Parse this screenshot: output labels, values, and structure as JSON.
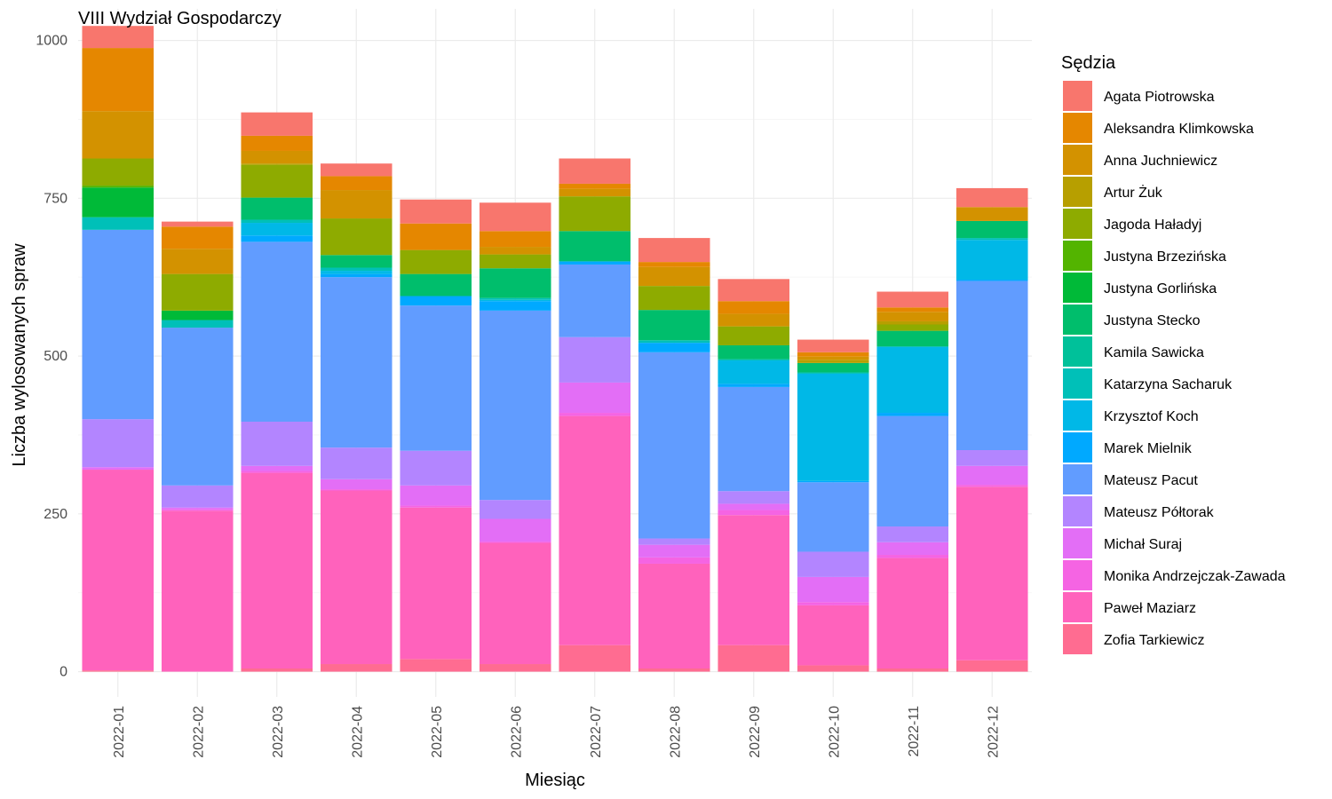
{
  "chart_data": {
    "type": "bar",
    "stacked": true,
    "title": "VIII Wydział Gospodarczy",
    "xlabel": "Miesiąc",
    "ylabel": "Liczba wylosowanych spraw",
    "ylim": [
      -40,
      1050
    ],
    "yticks": [
      0,
      250,
      500,
      750,
      1000
    ],
    "grid": true,
    "legend_position": "right",
    "legend_title": "Sędzia",
    "categories": [
      "2022-01",
      "2022-02",
      "2022-03",
      "2022-04",
      "2022-05",
      "2022-06",
      "2022-07",
      "2022-08",
      "2022-09",
      "2022-10",
      "2022-11",
      "2022-12"
    ],
    "series": [
      {
        "name": "Zofia Tarkiewicz",
        "color": "#FF6C91",
        "values": [
          2,
          0,
          5,
          12,
          20,
          12,
          42,
          5,
          42,
          10,
          5,
          18
        ]
      },
      {
        "name": "Paweł Maziarz",
        "color": "#FF62BC",
        "values": [
          318,
          255,
          310,
          275,
          240,
          192,
          363,
          166,
          206,
          95,
          175,
          275
        ]
      },
      {
        "name": "Monika Andrzejczak-Zawada",
        "color": "#F564E3",
        "values": [
          0,
          2,
          3,
          2,
          3,
          2,
          5,
          10,
          8,
          5,
          5,
          3
        ]
      },
      {
        "name": "Michał Suraj",
        "color": "#E36EF6",
        "values": [
          4,
          3,
          8,
          16,
          32,
          36,
          48,
          20,
          10,
          40,
          20,
          30
        ]
      },
      {
        "name": "Mateusz Półtorak",
        "color": "#B385FF",
        "values": [
          76,
          35,
          70,
          50,
          55,
          30,
          72,
          10,
          20,
          40,
          25,
          25
        ]
      },
      {
        "name": "Mateusz Pacut",
        "color": "#619CFF",
        "values": [
          300,
          250,
          285,
          270,
          230,
          300,
          115,
          295,
          165,
          110,
          175,
          268
        ]
      },
      {
        "name": "Marek Mielnik",
        "color": "#00A9FF",
        "values": [
          0,
          0,
          10,
          5,
          15,
          15,
          5,
          15,
          5,
          2,
          5,
          2
        ]
      },
      {
        "name": "Krzysztof Koch",
        "color": "#00B8E7",
        "values": [
          0,
          0,
          20,
          5,
          0,
          2,
          0,
          0,
          37,
          170,
          105,
          63
        ]
      },
      {
        "name": "Katarzyna Sacharuk",
        "color": "#00C0B8",
        "values": [
          20,
          12,
          5,
          5,
          0,
          3,
          0,
          4,
          2,
          2,
          0,
          3
        ]
      },
      {
        "name": "Kamila Sawicka",
        "color": "#00C19A",
        "values": [
          0,
          0,
          0,
          0,
          0,
          0,
          0,
          0,
          0,
          0,
          0,
          0
        ]
      },
      {
        "name": "Justyna Stecko",
        "color": "#00BE6C",
        "values": [
          0,
          0,
          35,
          20,
          35,
          47,
          48,
          48,
          22,
          15,
          25,
          27
        ]
      },
      {
        "name": "Justyna Gorlińska",
        "color": "#00BA38",
        "values": [
          47,
          15,
          0,
          0,
          0,
          0,
          0,
          0,
          0,
          0,
          0,
          0
        ]
      },
      {
        "name": "Justyna Brzezińska",
        "color": "#53B400",
        "values": [
          3,
          0,
          0,
          0,
          0,
          0,
          0,
          0,
          0,
          0,
          0,
          0
        ]
      },
      {
        "name": "Jagoda Haładyj",
        "color": "#8EAB00",
        "values": [
          43,
          58,
          52,
          58,
          38,
          22,
          55,
          38,
          30,
          0,
          10,
          0
        ]
      },
      {
        "name": "Artur Żuk",
        "color": "#B79F00",
        "values": [
          0,
          0,
          2,
          0,
          0,
          0,
          0,
          0,
          0,
          5,
          5,
          0
        ]
      },
      {
        "name": "Anna Juchniewicz",
        "color": "#D39200",
        "values": [
          75,
          40,
          20,
          45,
          0,
          12,
          12,
          30,
          20,
          5,
          15,
          22
        ]
      },
      {
        "name": "Aleksandra Klimkowska",
        "color": "#E58700",
        "values": [
          100,
          35,
          24,
          22,
          42,
          25,
          8,
          8,
          20,
          7,
          7,
          0
        ]
      },
      {
        "name": "Agata Piotrowska",
        "color": "#F8766D",
        "values": [
          35,
          8,
          37,
          20,
          38,
          45,
          40,
          38,
          35,
          20,
          25,
          30
        ]
      }
    ]
  }
}
